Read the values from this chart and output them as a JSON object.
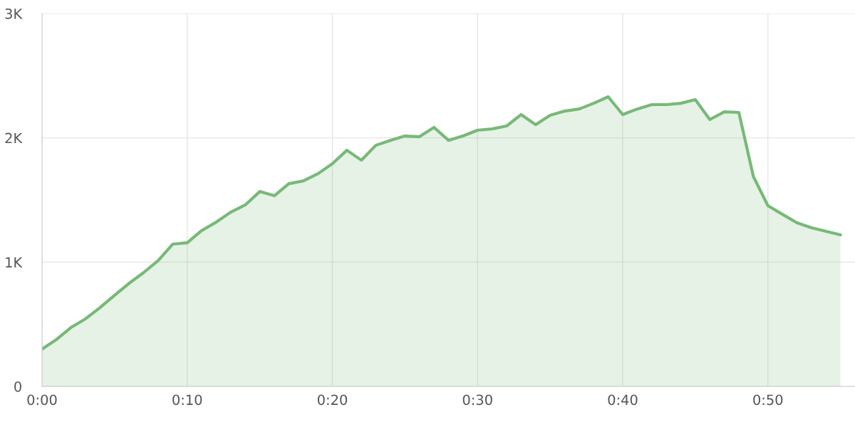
{
  "chart_data": {
    "type": "area",
    "x": [
      0,
      1,
      2,
      3,
      4,
      5,
      6,
      7,
      8,
      9,
      10,
      11,
      12,
      13,
      14,
      15,
      16,
      17,
      18,
      19,
      20,
      21,
      22,
      23,
      24,
      25,
      26,
      27,
      28,
      29,
      30,
      31,
      32,
      33,
      34,
      35,
      36,
      37,
      38,
      39,
      40,
      41,
      42,
      43,
      44,
      45,
      46,
      47,
      48,
      49,
      50,
      51,
      52,
      53,
      54,
      55
    ],
    "series": [
      {
        "color": "#77b977",
        "values": [
          300,
          378,
          475,
          544,
          635,
          733,
          830,
          916,
          1013,
          1145,
          1156,
          1254,
          1322,
          1402,
          1460,
          1568,
          1534,
          1631,
          1654,
          1711,
          1792,
          1900,
          1820,
          1940,
          1980,
          2015,
          2009,
          2084,
          1980,
          2015,
          2061,
          2072,
          2095,
          2187,
          2106,
          2181,
          2215,
          2232,
          2278,
          2330,
          2187,
          2232,
          2267,
          2267,
          2278,
          2307,
          2147,
          2209,
          2204,
          1689,
          1454,
          1385,
          1317,
          1277,
          1248,
          1219
        ]
      }
    ],
    "xlim": [
      0,
      56
    ],
    "ylim": [
      0,
      3000
    ],
    "xticks": [
      {
        "value": 0,
        "label": "0:00"
      },
      {
        "value": 10,
        "label": "0:10"
      },
      {
        "value": 20,
        "label": "0:20"
      },
      {
        "value": 30,
        "label": "0:30"
      },
      {
        "value": 40,
        "label": "0:40"
      },
      {
        "value": 50,
        "label": "0:50"
      }
    ],
    "yticks": [
      0,
      {
        "value": 1000,
        "label": "1K"
      },
      {
        "value": 2000,
        "label": "2K"
      },
      {
        "value": 3000,
        "label": "3K"
      }
    ],
    "grid": true,
    "line_style": "solid",
    "marker": "none"
  }
}
